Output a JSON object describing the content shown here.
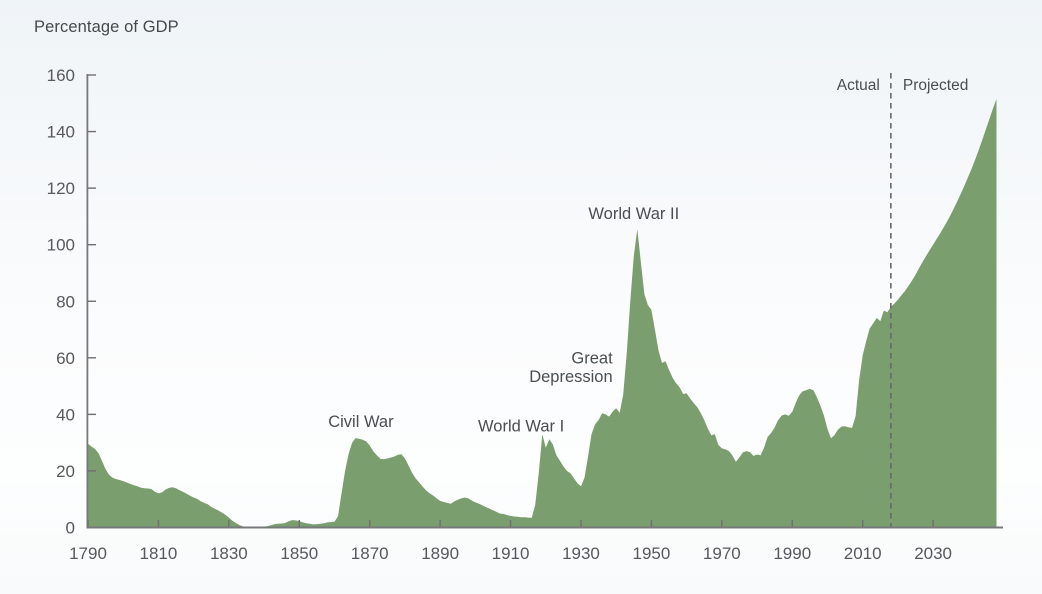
{
  "title": "Percentage of GDP",
  "chart_data": {
    "type": "area",
    "title": "Percentage of GDP",
    "unit": "percent of GDP",
    "grid": false,
    "legend": "none",
    "area_color": "#7a9e6d",
    "axis_color": "#77787b",
    "tick_color": "#6e6f72",
    "label_color": "#56585b",
    "x_axis": {
      "min": 1790,
      "max": 2050,
      "tick_interval": 20,
      "ticks": [
        1790,
        1810,
        1830,
        1850,
        1870,
        1890,
        1910,
        1930,
        1950,
        1970,
        1990,
        2010,
        2030
      ]
    },
    "y_axis": {
      "min": 0,
      "max": 160,
      "tick_interval": 20,
      "ticks": [
        0,
        20,
        40,
        60,
        80,
        100,
        120,
        140,
        160
      ]
    },
    "divider": {
      "year": 2018,
      "style": "dashed",
      "color": "#66686b",
      "left_label": "Actual",
      "right_label": "Projected"
    },
    "annotations": [
      {
        "id": "civil-war",
        "lines": [
          "Civil War"
        ],
        "year": 1867.5,
        "value": 35.5,
        "align": "middle"
      },
      {
        "id": "world-war-1",
        "lines": [
          "World War I"
        ],
        "year": 1913,
        "value": 34,
        "align": "middle"
      },
      {
        "id": "great-depression",
        "lines": [
          "Great",
          "Depression"
        ],
        "year": 1939,
        "value": 58,
        "align": "end"
      },
      {
        "id": "world-war-2",
        "lines": [
          "World War II"
        ],
        "year": 1945,
        "value": 109,
        "align": "middle"
      }
    ],
    "series": [
      {
        "name": "Actual",
        "points": [
          [
            1790,
            29.6
          ],
          [
            1791,
            28.6
          ],
          [
            1792,
            27.8
          ],
          [
            1793,
            26.2
          ],
          [
            1794,
            23.4
          ],
          [
            1795,
            20.6
          ],
          [
            1796,
            18.6
          ],
          [
            1797,
            17.6
          ],
          [
            1798,
            17.1
          ],
          [
            1799,
            16.8
          ],
          [
            1800,
            16.4
          ],
          [
            1801,
            15.9
          ],
          [
            1802,
            15.4
          ],
          [
            1803,
            15.0
          ],
          [
            1804,
            14.6
          ],
          [
            1805,
            14.1
          ],
          [
            1806,
            13.9
          ],
          [
            1807,
            13.8
          ],
          [
            1808,
            13.6
          ],
          [
            1809,
            12.6
          ],
          [
            1810,
            12.1
          ],
          [
            1811,
            12.4
          ],
          [
            1812,
            13.4
          ],
          [
            1813,
            14.0
          ],
          [
            1814,
            14.2
          ],
          [
            1815,
            13.9
          ],
          [
            1816,
            13.2
          ],
          [
            1817,
            12.6
          ],
          [
            1818,
            11.9
          ],
          [
            1819,
            11.2
          ],
          [
            1820,
            10.6
          ],
          [
            1821,
            10.1
          ],
          [
            1822,
            9.3
          ],
          [
            1823,
            8.7
          ],
          [
            1824,
            8.2
          ],
          [
            1825,
            7.3
          ],
          [
            1826,
            6.6
          ],
          [
            1827,
            6.0
          ],
          [
            1828,
            5.3
          ],
          [
            1829,
            4.5
          ],
          [
            1830,
            3.5
          ],
          [
            1831,
            2.4
          ],
          [
            1832,
            1.6
          ],
          [
            1833,
            0.9
          ],
          [
            1834,
            0.4
          ],
          [
            1835,
            0.2
          ],
          [
            1836,
            0.1
          ],
          [
            1837,
            0.2
          ],
          [
            1838,
            0.3
          ],
          [
            1839,
            0.2
          ],
          [
            1840,
            0.3
          ],
          [
            1841,
            0.5
          ],
          [
            1842,
            0.8
          ],
          [
            1843,
            1.2
          ],
          [
            1844,
            1.3
          ],
          [
            1845,
            1.4
          ],
          [
            1846,
            1.6
          ],
          [
            1847,
            2.2
          ],
          [
            1848,
            2.6
          ],
          [
            1849,
            2.5
          ],
          [
            1850,
            2.2
          ],
          [
            1851,
            1.8
          ],
          [
            1852,
            1.5
          ],
          [
            1853,
            1.3
          ],
          [
            1854,
            1.1
          ],
          [
            1855,
            1.2
          ],
          [
            1856,
            1.3
          ],
          [
            1857,
            1.5
          ],
          [
            1858,
            1.8
          ],
          [
            1859,
            1.9
          ],
          [
            1860,
            2.0
          ],
          [
            1861,
            4.0
          ],
          [
            1862,
            12.0
          ],
          [
            1863,
            20.0
          ],
          [
            1864,
            26.0
          ],
          [
            1865,
            30.0
          ],
          [
            1866,
            31.6
          ],
          [
            1867,
            31.4
          ],
          [
            1868,
            31.0
          ],
          [
            1869,
            30.4
          ],
          [
            1870,
            29.0
          ],
          [
            1871,
            27.0
          ],
          [
            1872,
            25.6
          ],
          [
            1873,
            24.3
          ],
          [
            1874,
            24.1
          ],
          [
            1875,
            24.4
          ],
          [
            1876,
            24.7
          ],
          [
            1877,
            25.1
          ],
          [
            1878,
            25.7
          ],
          [
            1879,
            25.9
          ],
          [
            1880,
            24.4
          ],
          [
            1881,
            22.0
          ],
          [
            1882,
            19.4
          ],
          [
            1883,
            17.4
          ],
          [
            1884,
            16.0
          ],
          [
            1885,
            14.5
          ],
          [
            1886,
            13.2
          ],
          [
            1887,
            12.1
          ],
          [
            1888,
            11.3
          ],
          [
            1889,
            10.3
          ],
          [
            1890,
            9.4
          ],
          [
            1891,
            9.0
          ],
          [
            1892,
            8.7
          ],
          [
            1893,
            8.4
          ],
          [
            1894,
            9.2
          ],
          [
            1895,
            9.8
          ],
          [
            1896,
            10.3
          ],
          [
            1897,
            10.6
          ],
          [
            1898,
            10.3
          ],
          [
            1899,
            9.5
          ],
          [
            1900,
            8.9
          ],
          [
            1901,
            8.4
          ],
          [
            1902,
            7.8
          ],
          [
            1903,
            7.2
          ],
          [
            1904,
            6.7
          ],
          [
            1905,
            6.1
          ],
          [
            1906,
            5.5
          ],
          [
            1907,
            4.9
          ],
          [
            1908,
            4.8
          ],
          [
            1909,
            4.4
          ],
          [
            1910,
            4.1
          ],
          [
            1911,
            3.9
          ],
          [
            1912,
            3.8
          ],
          [
            1913,
            3.6
          ],
          [
            1914,
            3.6
          ],
          [
            1915,
            3.5
          ],
          [
            1916,
            3.4
          ],
          [
            1917,
            8.0
          ],
          [
            1918,
            19.0
          ],
          [
            1919,
            33.0
          ],
          [
            1920,
            28.2
          ],
          [
            1921,
            31.2
          ],
          [
            1922,
            29.4
          ],
          [
            1923,
            25.6
          ],
          [
            1924,
            23.6
          ],
          [
            1925,
            21.6
          ],
          [
            1926,
            20.0
          ],
          [
            1927,
            19.2
          ],
          [
            1928,
            17.4
          ],
          [
            1929,
            15.6
          ],
          [
            1930,
            14.6
          ],
          [
            1931,
            17.6
          ],
          [
            1932,
            25.0
          ],
          [
            1933,
            33.0
          ],
          [
            1934,
            36.5
          ],
          [
            1935,
            38.0
          ],
          [
            1936,
            40.4
          ],
          [
            1937,
            40.0
          ],
          [
            1938,
            39.2
          ],
          [
            1939,
            41.0
          ],
          [
            1940,
            42.2
          ],
          [
            1941,
            40.6
          ],
          [
            1942,
            47.0
          ],
          [
            1943,
            62.0
          ],
          [
            1944,
            80.0
          ],
          [
            1945,
            96.0
          ],
          [
            1946,
            105.5
          ],
          [
            1947,
            94.0
          ],
          [
            1948,
            82.5
          ],
          [
            1949,
            78.6
          ],
          [
            1950,
            77.0
          ],
          [
            1951,
            70.0
          ],
          [
            1952,
            62.6
          ],
          [
            1953,
            58.2
          ],
          [
            1954,
            58.8
          ],
          [
            1955,
            55.8
          ],
          [
            1956,
            53.0
          ],
          [
            1957,
            51.0
          ],
          [
            1958,
            49.6
          ],
          [
            1959,
            47.2
          ],
          [
            1960,
            47.5
          ],
          [
            1961,
            45.6
          ],
          [
            1962,
            44.0
          ],
          [
            1963,
            42.6
          ],
          [
            1964,
            40.5
          ],
          [
            1965,
            38.0
          ],
          [
            1966,
            35.0
          ],
          [
            1967,
            32.6
          ],
          [
            1968,
            33.0
          ],
          [
            1969,
            29.2
          ],
          [
            1970,
            28.0
          ],
          [
            1971,
            27.6
          ],
          [
            1972,
            27.0
          ],
          [
            1973,
            25.5
          ],
          [
            1974,
            23.2
          ],
          [
            1975,
            24.8
          ],
          [
            1976,
            26.6
          ],
          [
            1977,
            27.0
          ],
          [
            1978,
            26.6
          ],
          [
            1979,
            25.3
          ],
          [
            1980,
            25.8
          ],
          [
            1981,
            25.5
          ],
          [
            1982,
            28.3
          ],
          [
            1983,
            32.0
          ],
          [
            1984,
            33.4
          ],
          [
            1985,
            35.4
          ],
          [
            1986,
            38.0
          ],
          [
            1987,
            39.6
          ],
          [
            1988,
            40.0
          ],
          [
            1989,
            39.5
          ],
          [
            1990,
            40.9
          ],
          [
            1991,
            44.1
          ],
          [
            1992,
            46.8
          ],
          [
            1993,
            48.2
          ],
          [
            1994,
            48.6
          ],
          [
            1995,
            49.0
          ],
          [
            1996,
            48.5
          ],
          [
            1997,
            46.0
          ],
          [
            1998,
            43.1
          ],
          [
            1999,
            39.5
          ],
          [
            2000,
            34.8
          ],
          [
            2001,
            31.5
          ],
          [
            2002,
            32.7
          ],
          [
            2003,
            34.6
          ],
          [
            2004,
            35.7
          ],
          [
            2005,
            35.8
          ],
          [
            2006,
            35.4
          ],
          [
            2007,
            35.2
          ],
          [
            2008,
            39.4
          ],
          [
            2009,
            52.3
          ],
          [
            2010,
            60.9
          ],
          [
            2011,
            65.9
          ],
          [
            2012,
            70.4
          ],
          [
            2013,
            72.2
          ],
          [
            2014,
            74.1
          ],
          [
            2015,
            72.9
          ],
          [
            2016,
            76.7
          ],
          [
            2017,
            76.1
          ],
          [
            2018,
            78.0
          ]
        ]
      },
      {
        "name": "Projected",
        "points": [
          [
            2018,
            78.0
          ],
          [
            2019,
            79.2
          ],
          [
            2020,
            80.6
          ],
          [
            2021,
            82.1
          ],
          [
            2022,
            83.6
          ],
          [
            2023,
            85.4
          ],
          [
            2024,
            87.3
          ],
          [
            2025,
            89.4
          ],
          [
            2026,
            91.7
          ],
          [
            2027,
            93.9
          ],
          [
            2028,
            96.0
          ],
          [
            2029,
            98.0
          ],
          [
            2030,
            100.0
          ],
          [
            2031,
            102.0
          ],
          [
            2032,
            104.0
          ],
          [
            2033,
            106.1
          ],
          [
            2034,
            108.3
          ],
          [
            2035,
            110.6
          ],
          [
            2036,
            113.1
          ],
          [
            2037,
            115.7
          ],
          [
            2038,
            118.4
          ],
          [
            2039,
            121.2
          ],
          [
            2040,
            124.1
          ],
          [
            2041,
            127.1
          ],
          [
            2042,
            130.3
          ],
          [
            2043,
            133.7
          ],
          [
            2044,
            137.2
          ],
          [
            2045,
            140.8
          ],
          [
            2046,
            144.5
          ],
          [
            2047,
            148.2
          ],
          [
            2048,
            151.5
          ]
        ]
      }
    ]
  }
}
